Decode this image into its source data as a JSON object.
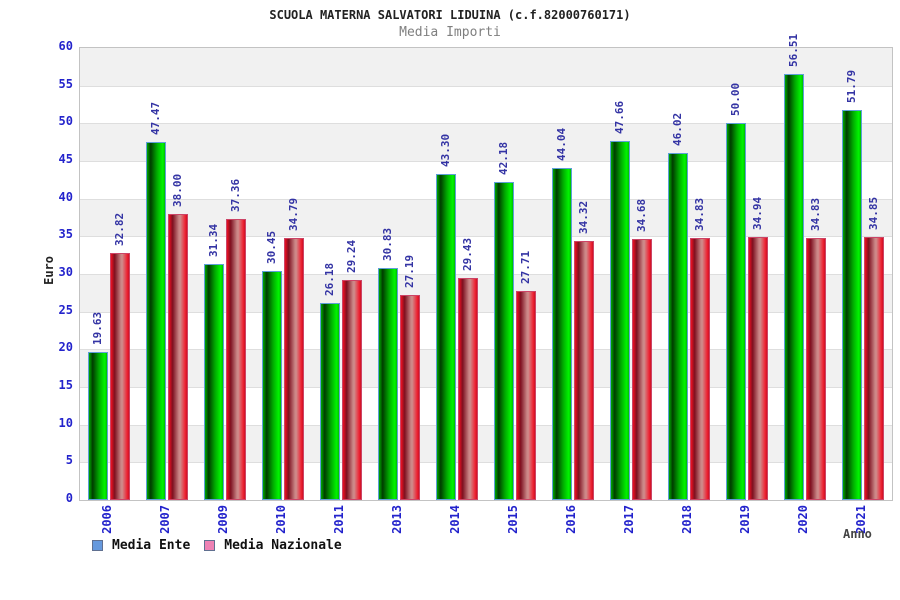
{
  "header": {
    "title": "SCUOLA MATERNA SALVATORI LIDUINA (c.f.82000760171)",
    "subtitle": "Media Importi"
  },
  "axes": {
    "y_label": "Euro",
    "x_label": "Anno",
    "y_ticks": [
      0,
      5,
      10,
      15,
      20,
      25,
      30,
      35,
      40,
      45,
      50,
      55,
      60
    ]
  },
  "legend": {
    "items": [
      {
        "label": "Media Ente",
        "swatch_color": "#6699dd"
      },
      {
        "label": "Media Nazionale",
        "swatch_color": "#ee82b4"
      }
    ]
  },
  "colors": {
    "bar_ente_main": "#00cc00",
    "bar_ente_border": "#5f9fd8",
    "bar_nazionale_main": "#dd2233",
    "bar_nazionale_border": "#cc4466",
    "value_label": "#3434a4",
    "tick_label": "#2323cc",
    "band_gray": "#f1f1f1",
    "band_white": "#ffffff"
  },
  "chart_data": {
    "type": "bar",
    "title": "Media Importi",
    "xlabel": "Anno",
    "ylabel": "Euro",
    "ylim": [
      0,
      60
    ],
    "y_step": 5,
    "grid": "horizontal-bands",
    "legend_position": "bottom-left",
    "categories": [
      "2006",
      "2007",
      "2009",
      "2010",
      "2011",
      "2013",
      "2014",
      "2015",
      "2016",
      "2017",
      "2018",
      "2019",
      "2020",
      "2021"
    ],
    "series": [
      {
        "name": "Media Ente",
        "values": [
          19.63,
          47.47,
          31.34,
          30.45,
          26.18,
          30.83,
          43.3,
          42.18,
          44.04,
          47.66,
          46.02,
          50.0,
          56.51,
          51.79
        ]
      },
      {
        "name": "Media Nazionale",
        "values": [
          32.82,
          38.0,
          37.36,
          34.79,
          29.24,
          27.19,
          29.43,
          27.71,
          34.32,
          34.68,
          34.83,
          34.94,
          34.83,
          34.85
        ]
      }
    ],
    "value_labels": {
      "Media Ente": [
        "19.63",
        "47.47",
        "31.34",
        "30.45",
        "26.18",
        "30.83",
        "43.30",
        "42.18",
        "44.04",
        "47.66",
        "46.02",
        "50.00",
        "56.51",
        "51.79"
      ],
      "Media Nazionale": [
        "32.82",
        "38.00",
        "37.36",
        "34.79",
        "29.24",
        "27.19",
        "29.43",
        "27.71",
        "34.32",
        "34.68",
        "34.83",
        "34.94",
        "34.83",
        "34.85"
      ]
    }
  }
}
